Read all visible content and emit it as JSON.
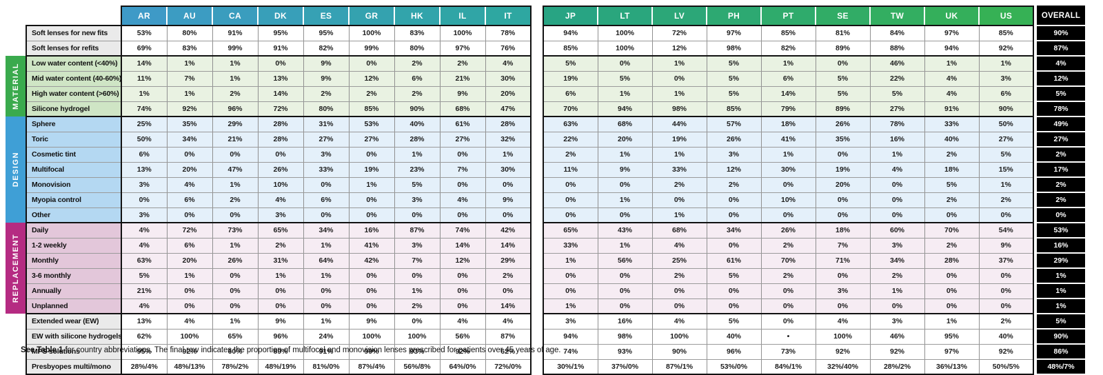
{
  "chart_data": {
    "type": "table",
    "left_columns": [
      "AR",
      "AU",
      "CA",
      "DK",
      "ES",
      "GR",
      "HK",
      "IL",
      "IT"
    ],
    "right_columns": [
      "JP",
      "LT",
      "LV",
      "PH",
      "PT",
      "SE",
      "TW",
      "UK",
      "US"
    ],
    "overall_column": "OVERALL",
    "rows": [
      {
        "label": "Soft lenses for new fits",
        "group": "plain",
        "left": [
          "53%",
          "80%",
          "91%",
          "95%",
          "95%",
          "100%",
          "83%",
          "100%",
          "78%"
        ],
        "right": [
          "94%",
          "100%",
          "72%",
          "97%",
          "85%",
          "81%",
          "84%",
          "97%",
          "85%"
        ],
        "overall": "90%"
      },
      {
        "label": "Soft lenses for refits",
        "group": "plain",
        "left": [
          "69%",
          "83%",
          "99%",
          "91%",
          "82%",
          "99%",
          "80%",
          "97%",
          "76%"
        ],
        "right": [
          "85%",
          "100%",
          "12%",
          "98%",
          "82%",
          "89%",
          "88%",
          "94%",
          "92%"
        ],
        "overall": "87%"
      },
      {
        "label": "Low water content (<40%)",
        "group": "material",
        "left": [
          "14%",
          "1%",
          "1%",
          "0%",
          "9%",
          "0%",
          "2%",
          "2%",
          "4%"
        ],
        "right": [
          "5%",
          "0%",
          "1%",
          "5%",
          "1%",
          "0%",
          "46%",
          "1%",
          "1%"
        ],
        "overall": "4%"
      },
      {
        "label": "Mid water content (40-60%)",
        "group": "material",
        "left": [
          "11%",
          "7%",
          "1%",
          "13%",
          "9%",
          "12%",
          "6%",
          "21%",
          "30%"
        ],
        "right": [
          "19%",
          "5%",
          "0%",
          "5%",
          "6%",
          "5%",
          "22%",
          "4%",
          "3%"
        ],
        "overall": "12%"
      },
      {
        "label": "High water content (>60%)",
        "group": "material",
        "left": [
          "1%",
          "1%",
          "2%",
          "14%",
          "2%",
          "2%",
          "2%",
          "9%",
          "20%"
        ],
        "right": [
          "6%",
          "1%",
          "1%",
          "5%",
          "14%",
          "5%",
          "5%",
          "4%",
          "6%"
        ],
        "overall": "5%"
      },
      {
        "label": "Silicone hydrogel",
        "group": "material",
        "left": [
          "74%",
          "92%",
          "96%",
          "72%",
          "80%",
          "85%",
          "90%",
          "68%",
          "47%"
        ],
        "right": [
          "70%",
          "94%",
          "98%",
          "85%",
          "79%",
          "89%",
          "27%",
          "91%",
          "90%"
        ],
        "overall": "78%"
      },
      {
        "label": "Sphere",
        "group": "design",
        "left": [
          "25%",
          "35%",
          "29%",
          "28%",
          "31%",
          "53%",
          "40%",
          "61%",
          "28%"
        ],
        "right": [
          "63%",
          "68%",
          "44%",
          "57%",
          "18%",
          "26%",
          "78%",
          "33%",
          "50%"
        ],
        "overall": "49%"
      },
      {
        "label": "Toric",
        "group": "design",
        "left": [
          "50%",
          "34%",
          "21%",
          "28%",
          "27%",
          "27%",
          "28%",
          "27%",
          "32%"
        ],
        "right": [
          "22%",
          "20%",
          "19%",
          "26%",
          "41%",
          "35%",
          "16%",
          "40%",
          "27%"
        ],
        "overall": "27%"
      },
      {
        "label": "Cosmetic tint",
        "group": "design",
        "left": [
          "6%",
          "0%",
          "0%",
          "0%",
          "3%",
          "0%",
          "1%",
          "0%",
          "1%"
        ],
        "right": [
          "2%",
          "1%",
          "1%",
          "3%",
          "1%",
          "0%",
          "1%",
          "2%",
          "5%"
        ],
        "overall": "2%"
      },
      {
        "label": "Multifocal",
        "group": "design",
        "left": [
          "13%",
          "20%",
          "47%",
          "26%",
          "33%",
          "19%",
          "23%",
          "7%",
          "30%"
        ],
        "right": [
          "11%",
          "9%",
          "33%",
          "12%",
          "30%",
          "19%",
          "4%",
          "18%",
          "15%"
        ],
        "overall": "17%"
      },
      {
        "label": "Monovision",
        "group": "design",
        "left": [
          "3%",
          "4%",
          "1%",
          "10%",
          "0%",
          "1%",
          "5%",
          "0%",
          "0%"
        ],
        "right": [
          "0%",
          "0%",
          "2%",
          "2%",
          "0%",
          "20%",
          "0%",
          "5%",
          "1%"
        ],
        "overall": "2%"
      },
      {
        "label": "Myopia control",
        "group": "design",
        "left": [
          "0%",
          "6%",
          "2%",
          "4%",
          "6%",
          "0%",
          "3%",
          "4%",
          "9%"
        ],
        "right": [
          "0%",
          "1%",
          "0%",
          "0%",
          "10%",
          "0%",
          "0%",
          "2%",
          "2%"
        ],
        "overall": "2%"
      },
      {
        "label": "Other",
        "group": "design",
        "left": [
          "3%",
          "0%",
          "0%",
          "3%",
          "0%",
          "0%",
          "0%",
          "0%",
          "0%"
        ],
        "right": [
          "0%",
          "0%",
          "1%",
          "0%",
          "0%",
          "0%",
          "0%",
          "0%",
          "0%"
        ],
        "overall": "0%"
      },
      {
        "label": "Daily",
        "group": "replacement",
        "left": [
          "4%",
          "72%",
          "73%",
          "65%",
          "34%",
          "16%",
          "87%",
          "74%",
          "42%"
        ],
        "right": [
          "65%",
          "43%",
          "68%",
          "34%",
          "26%",
          "18%",
          "60%",
          "70%",
          "54%"
        ],
        "overall": "53%"
      },
      {
        "label": "1-2 weekly",
        "group": "replacement",
        "left": [
          "4%",
          "6%",
          "1%",
          "2%",
          "1%",
          "41%",
          "3%",
          "14%",
          "14%"
        ],
        "right": [
          "33%",
          "1%",
          "4%",
          "0%",
          "2%",
          "7%",
          "3%",
          "2%",
          "9%"
        ],
        "overall": "16%"
      },
      {
        "label": "Monthly",
        "group": "replacement",
        "left": [
          "63%",
          "20%",
          "26%",
          "31%",
          "64%",
          "42%",
          "7%",
          "12%",
          "29%"
        ],
        "right": [
          "1%",
          "56%",
          "25%",
          "61%",
          "70%",
          "71%",
          "34%",
          "28%",
          "37%"
        ],
        "overall": "29%"
      },
      {
        "label": "3-6 monthly",
        "group": "replacement",
        "left": [
          "5%",
          "1%",
          "0%",
          "1%",
          "1%",
          "0%",
          "0%",
          "0%",
          "2%"
        ],
        "right": [
          "0%",
          "0%",
          "2%",
          "5%",
          "2%",
          "0%",
          "2%",
          "0%",
          "0%"
        ],
        "overall": "1%"
      },
      {
        "label": "Annually",
        "group": "replacement",
        "left": [
          "21%",
          "0%",
          "0%",
          "0%",
          "0%",
          "0%",
          "1%",
          "0%",
          "0%"
        ],
        "right": [
          "0%",
          "0%",
          "0%",
          "0%",
          "0%",
          "3%",
          "1%",
          "0%",
          "0%"
        ],
        "overall": "1%"
      },
      {
        "label": "Unplanned",
        "group": "replacement",
        "left": [
          "4%",
          "0%",
          "0%",
          "0%",
          "0%",
          "0%",
          "2%",
          "0%",
          "14%"
        ],
        "right": [
          "1%",
          "0%",
          "0%",
          "0%",
          "0%",
          "0%",
          "0%",
          "0%",
          "0%"
        ],
        "overall": "1%"
      },
      {
        "label": "Extended wear (EW)",
        "group": "plain",
        "left": [
          "13%",
          "4%",
          "1%",
          "9%",
          "1%",
          "9%",
          "0%",
          "4%",
          "4%"
        ],
        "right": [
          "3%",
          "16%",
          "4%",
          "5%",
          "0%",
          "4%",
          "3%",
          "1%",
          "2%"
        ],
        "overall": "5%"
      },
      {
        "label": "EW with silicone hydrogels",
        "group": "plain",
        "left": [
          "62%",
          "100%",
          "65%",
          "96%",
          "24%",
          "100%",
          "100%",
          "56%",
          "87%"
        ],
        "right": [
          "94%",
          "98%",
          "100%",
          "40%",
          "•",
          "100%",
          "46%",
          "95%",
          "40%"
        ],
        "overall": "90%"
      },
      {
        "label": "MPS solutions",
        "group": "plain",
        "left": [
          "95%",
          "92%",
          "60%",
          "89%",
          "91%",
          "99%",
          "93%",
          "92%",
          "62%"
        ],
        "right": [
          "74%",
          "93%",
          "90%",
          "96%",
          "73%",
          "92%",
          "92%",
          "97%",
          "92%"
        ],
        "overall": "86%"
      },
      {
        "label": "Presbyopes multi/mono",
        "group": "plain",
        "left": [
          "28%/4%",
          "48%/13%",
          "78%/2%",
          "48%/19%",
          "81%/0%",
          "87%/4%",
          "56%/8%",
          "64%/0%",
          "72%/0%"
        ],
        "right": [
          "30%/1%",
          "37%/0%",
          "87%/1%",
          "53%/0%",
          "84%/1%",
          "32%/40%",
          "28%/2%",
          "36%/13%",
          "50%/5%"
        ],
        "overall": "48%/7%"
      }
    ],
    "side_labels": [
      {
        "text": "MATERIAL",
        "start": 2,
        "span": 4
      },
      {
        "text": "DESIGN",
        "start": 6,
        "span": 7
      },
      {
        "text": "REPLACEMENT",
        "start": 13,
        "span": 6
      }
    ],
    "section_break_rows": [
      2,
      6,
      13,
      19
    ],
    "footnote": {
      "bold": "See Table 1",
      "rest": " for country abbreviations. The final row indicates the proportion of multifocal and monovision lenses prescribed for patients over 45 years of age."
    }
  },
  "colors": {
    "header_left_start": "#3E9AC7",
    "header_left_end": "#2EA7A1",
    "header_right_start": "#28A483",
    "header_right_end": "#36B155",
    "overall_bg": "#000000",
    "material_strip": "#3AAA4D",
    "design_strip": "#3F9FD6",
    "replacement_strip": "#B52B82",
    "material_label_bg": "#CFE5C5",
    "design_label_bg": "#B4D8F2",
    "replacement_label_bg": "#E3C7DA",
    "plain_label_bg": "#EAEAEA",
    "material_cell_bg": "#E9F2E2",
    "design_cell_bg": "#E4F0FA",
    "replacement_cell_bg": "#F6ECF3",
    "plain_cell_bg": "#FFFFFF"
  }
}
